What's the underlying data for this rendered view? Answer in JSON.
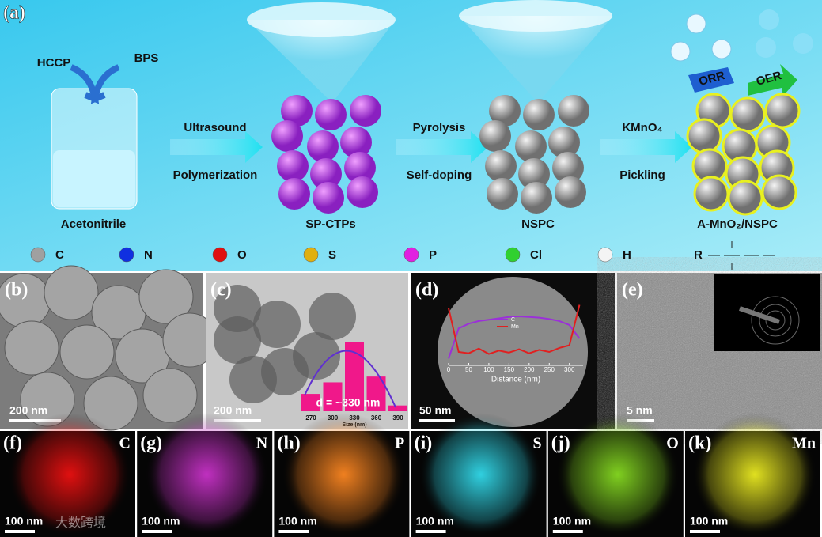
{
  "panels": {
    "a": {
      "label": "(a)",
      "precursors": [
        "HCCP",
        "BPS"
      ],
      "solvent": "Acetonitrile",
      "steps": [
        [
          "Ultrasound",
          "Polymerization"
        ],
        [
          "Pyrolysis",
          "Self-doping"
        ],
        [
          "KMnO₄",
          "Pickling"
        ]
      ],
      "products": [
        "SP-CTPs",
        "NSPC",
        "A-MnO₂/NSPC"
      ],
      "reactions": [
        "ORR",
        "OER"
      ],
      "legend": [
        {
          "symbol": "C",
          "color": "#a0a0a0"
        },
        {
          "symbol": "N",
          "color": "#1030e0"
        },
        {
          "symbol": "O",
          "color": "#e01010"
        },
        {
          "symbol": "S",
          "color": "#e0b010"
        },
        {
          "symbol": "P",
          "color": "#e020e0"
        },
        {
          "symbol": "Cl",
          "color": "#30d030"
        },
        {
          "symbol": "H",
          "color": "#f4f4f4"
        },
        {
          "symbol": "R"
        }
      ]
    },
    "b": {
      "label": "(b)",
      "scale_bar": "200 nm"
    },
    "c": {
      "label": "(c)",
      "scale_bar": "200 nm",
      "histogram": {
        "annotation": "d = ~330 nm",
        "x_label": "Size (nm)",
        "categories": [
          "270",
          "300",
          "330",
          "360",
          "390"
        ],
        "values": [
          3,
          5,
          12,
          6,
          1
        ],
        "ylim": [
          0,
          13
        ],
        "color": "#f0188a"
      }
    },
    "d": {
      "label": "(d)",
      "scale_bar": "50 nm",
      "profile": {
        "x_label": "Distance (nm)",
        "xlim": [
          0,
          330
        ],
        "xticks": [
          0,
          50,
          100,
          150,
          200,
          250,
          300
        ],
        "ylim": [
          0,
          100
        ],
        "x": [
          0,
          25,
          50,
          75,
          100,
          125,
          150,
          175,
          200,
          225,
          250,
          275,
          300,
          325
        ],
        "series": [
          {
            "name": "C",
            "color": "#9b30d9",
            "values": [
              10,
              55,
              62,
              66,
              68,
              70,
              72,
              73,
              72,
              71,
              69,
              66,
              60,
              40
            ]
          },
          {
            "name": "Mn",
            "color": "#e02020",
            "values": [
              85,
              20,
              18,
              25,
              17,
              22,
              19,
              24,
              18,
              23,
              20,
              26,
              30,
              90
            ]
          }
        ]
      }
    },
    "e": {
      "label": "(e)",
      "scale_bar": "5 nm"
    },
    "maps": [
      {
        "label": "(f)",
        "element": "C",
        "scale_bar": "100 nm",
        "color": "#e01010"
      },
      {
        "label": "(g)",
        "element": "N",
        "scale_bar": "100 nm",
        "color": "#c030c0"
      },
      {
        "label": "(h)",
        "element": "P",
        "scale_bar": "100 nm",
        "color": "#f08020"
      },
      {
        "label": "(i)",
        "element": "S",
        "scale_bar": "100 nm",
        "color": "#30d0e0"
      },
      {
        "label": "(j)",
        "element": "O",
        "scale_bar": "100 nm",
        "color": "#80d020"
      },
      {
        "label": "(k)",
        "element": "Mn",
        "scale_bar": "100 nm",
        "color": "#e0e020"
      }
    ]
  },
  "watermark": "大数跨境"
}
